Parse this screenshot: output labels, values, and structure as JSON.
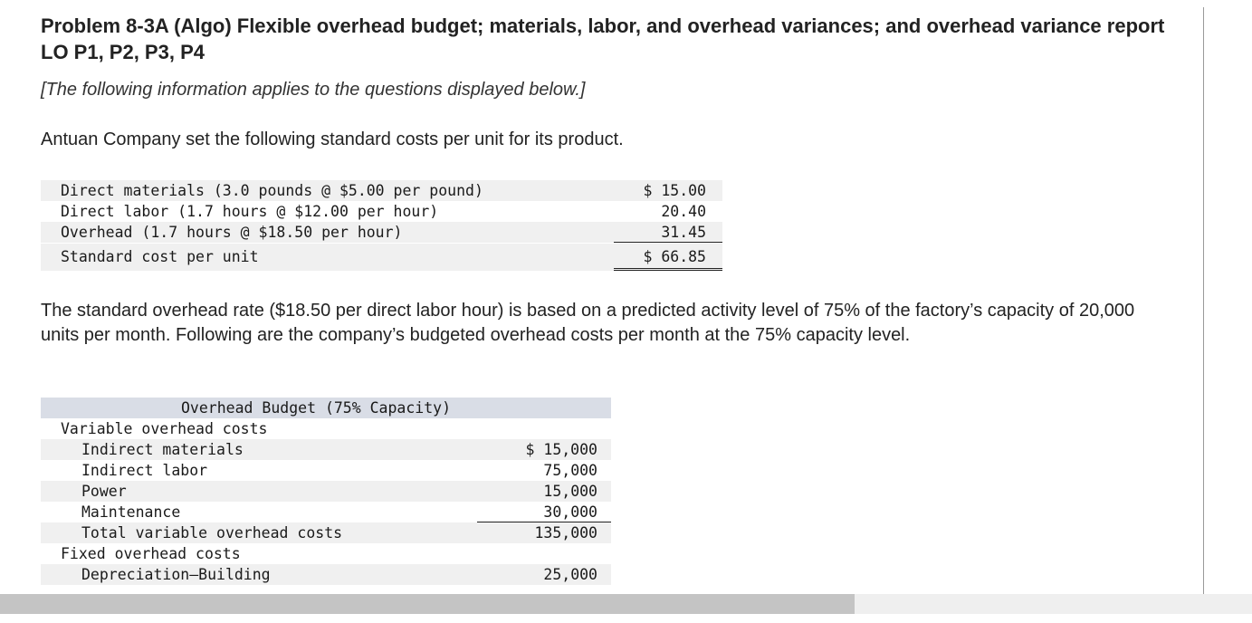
{
  "problem": {
    "title": "Problem 8-3A (Algo) Flexible overhead budget; materials, labor, and overhead variances; and overhead variance report LO P1, P2, P3, P4",
    "intro_note": "[The following information applies to the questions displayed below.]",
    "para1": "Antuan Company set the following standard costs per unit for its product.",
    "para2": "The standard overhead rate ($18.50 per direct labor hour) is based on a predicted activity level of 75% of the factory’s capacity of 20,000 units per month. Following are the company’s budgeted overhead costs per month at the 75% capacity level."
  },
  "standard_costs": {
    "rows": [
      {
        "label": "Direct materials (3.0 pounds @ $5.00 per pound)",
        "amount": "$ 15.00"
      },
      {
        "label": "Direct labor (1.7 hours @ $12.00 per hour)",
        "amount": "20.40"
      },
      {
        "label": "Overhead (1.7 hours @ $18.50 per hour)",
        "amount": "31.45"
      }
    ],
    "total": {
      "label": "Standard cost per unit",
      "amount": "$ 66.85"
    }
  },
  "overhead_budget": {
    "header": "Overhead Budget (75% Capacity)",
    "rows": [
      {
        "label": "Variable overhead costs",
        "amount": ""
      },
      {
        "label": "Indirect materials",
        "amount": "$ 15,000"
      },
      {
        "label": "Indirect labor",
        "amount": "75,000"
      },
      {
        "label": "Power",
        "amount": "15,000"
      },
      {
        "label": "Maintenance",
        "amount": "30,000"
      },
      {
        "label": "Total variable overhead costs",
        "amount": "135,000"
      },
      {
        "label": "Fixed overhead costs",
        "amount": ""
      },
      {
        "label": "Depreciation—Building",
        "amount": "25,000"
      }
    ]
  }
}
